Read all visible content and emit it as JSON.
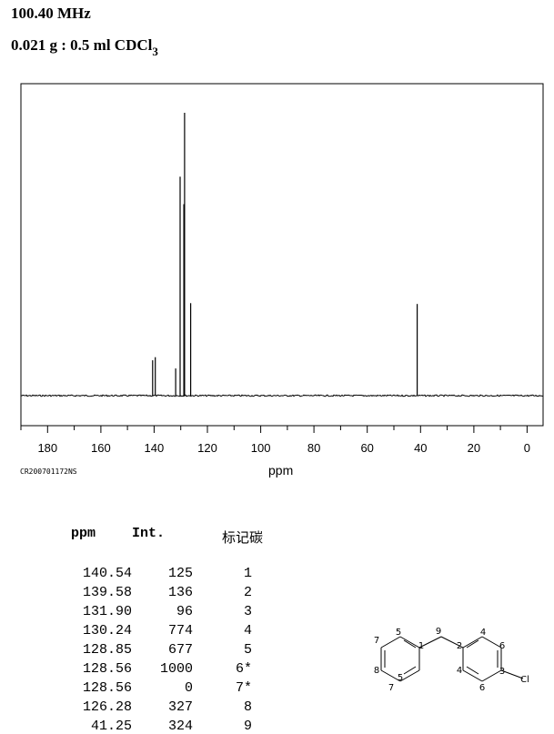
{
  "header": {
    "frequency": "100.40 MHz",
    "sample_prefix": "0.021 g : 0.5 ml CDCl",
    "sample_sub": "3"
  },
  "code": "CR200701172NS",
  "chart_data": {
    "type": "bar",
    "xlabel": "ppm",
    "xlim": [
      190,
      -6
    ],
    "ticks": [
      180,
      160,
      140,
      120,
      100,
      80,
      60,
      40,
      20,
      0
    ],
    "peaks": [
      {
        "ppm": 140.54,
        "intensity": 125
      },
      {
        "ppm": 139.58,
        "intensity": 136
      },
      {
        "ppm": 131.9,
        "intensity": 96
      },
      {
        "ppm": 130.24,
        "intensity": 774
      },
      {
        "ppm": 128.85,
        "intensity": 677
      },
      {
        "ppm": 128.56,
        "intensity": 1000
      },
      {
        "ppm": 126.28,
        "intensity": 327
      },
      {
        "ppm": 41.25,
        "intensity": 324
      }
    ]
  },
  "table": {
    "headers": [
      "ppm",
      "Int.",
      "标记碳"
    ],
    "rows": [
      [
        "140.54",
        "125",
        "1"
      ],
      [
        "139.58",
        "136",
        "2"
      ],
      [
        "131.90",
        "96",
        "3"
      ],
      [
        "130.24",
        "774",
        "4"
      ],
      [
        "128.85",
        "677",
        "5"
      ],
      [
        "128.56",
        "1000",
        "6*"
      ],
      [
        "128.56",
        "0",
        "7*"
      ],
      [
        "126.28",
        "327",
        "8"
      ],
      [
        "41.25",
        "324",
        "9"
      ]
    ]
  },
  "molecule": {
    "labels": [
      "7",
      "5",
      "1",
      "9",
      "2",
      "4",
      "6",
      "8",
      "5",
      "7",
      "4",
      "6",
      "3",
      "Cl"
    ]
  }
}
